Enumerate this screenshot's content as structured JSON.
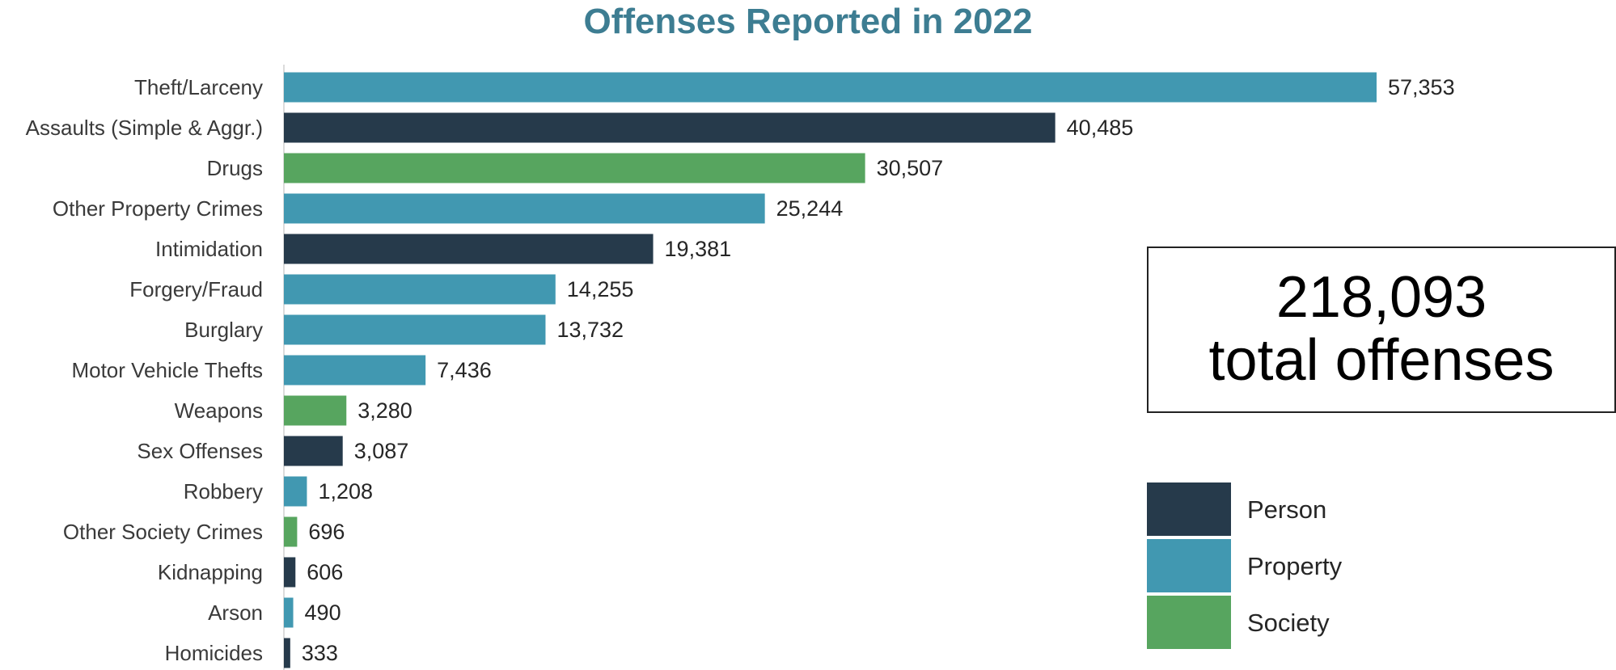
{
  "chart_data": {
    "type": "bar",
    "orientation": "horizontal",
    "title": "Offenses Reported in 2022",
    "categories": [
      "Theft/Larceny",
      "Assaults (Simple & Aggr.)",
      "Drugs",
      "Other Property Crimes",
      "Intimidation",
      "Forgery/Fraud",
      "Burglary",
      "Motor Vehicle Thefts",
      "Weapons",
      "Sex Offenses",
      "Robbery",
      "Other Society Crimes",
      "Kidnapping",
      "Arson",
      "Homicides"
    ],
    "values": [
      57353,
      40485,
      30507,
      25244,
      19381,
      14255,
      13732,
      7436,
      3280,
      3087,
      1208,
      696,
      606,
      490,
      333
    ],
    "value_labels": [
      "57,353",
      "40,485",
      "30,507",
      "25,244",
      "19,381",
      "14,255",
      "13,732",
      "7,436",
      "3,280",
      "3,087",
      "1,208",
      "696",
      "606",
      "490",
      "333"
    ],
    "groups": [
      "Property",
      "Person",
      "Society",
      "Property",
      "Person",
      "Property",
      "Property",
      "Property",
      "Society",
      "Person",
      "Property",
      "Society",
      "Person",
      "Property",
      "Person"
    ],
    "legend": [
      {
        "name": "Person",
        "color": "#263a4b"
      },
      {
        "name": "Property",
        "color": "#4198b1"
      },
      {
        "name": "Society",
        "color": "#57a55f"
      }
    ],
    "legend_position": "bottom-right",
    "xlim": [
      0,
      57353
    ],
    "grid": false,
    "xlabel": "",
    "ylabel": ""
  },
  "summary": {
    "total_value": "218,093",
    "total_label": "total offenses"
  },
  "colors": {
    "title": "#3d7d92",
    "axis": "#cfcfcf",
    "category_text": "#3a3a3a",
    "value_text": "#262626"
  }
}
